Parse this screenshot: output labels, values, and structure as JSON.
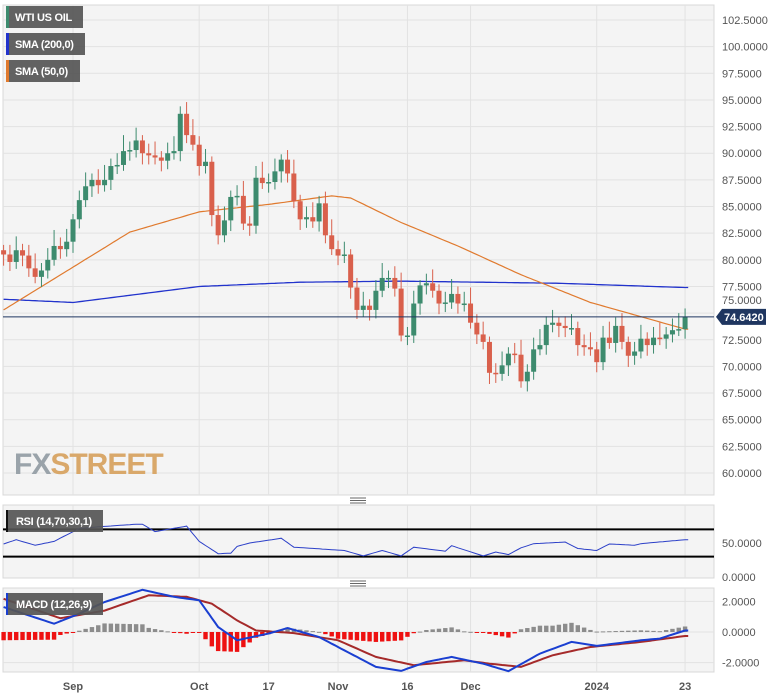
{
  "chart_data": {
    "type": "candlestick",
    "title": "WTI US OIL",
    "legend": [
      {
        "label": "WTI US OIL",
        "color": "#3d8b6e"
      },
      {
        "label": "SMA (200,0)",
        "color": "#2233cc"
      },
      {
        "label": "SMA (50,0)",
        "color": "#e07a2e"
      }
    ],
    "legend_placement": "top-left",
    "watermark": "FXSTREET",
    "ylim": [
      57.5,
      104
    ],
    "y_ticks": [
      "60.0000",
      "62.5000",
      "65.0000",
      "67.5000",
      "70.0000",
      "72.5000",
      "75.0000",
      "77.5000",
      "80.0000",
      "82.5000",
      "85.0000",
      "87.5000",
      "90.0000",
      "92.5000",
      "95.0000",
      "97.5000",
      "100.0000",
      "102.5000"
    ],
    "x_ticks": [
      {
        "label": "Sep",
        "index": 11
      },
      {
        "label": "Oct",
        "index": 31
      },
      {
        "label": "17",
        "index": 42
      },
      {
        "label": "Nov",
        "index": 53
      },
      {
        "label": "16",
        "index": 64
      },
      {
        "label": "Dec",
        "index": 74
      },
      {
        "label": "2024",
        "index": 94
      },
      {
        "label": "23",
        "index": 108
      }
    ],
    "current_price": {
      "value": 74.642,
      "label": "74.6420"
    },
    "closes": [
      80.5,
      79.8,
      80.9,
      80.4,
      79.2,
      78.4,
      79.0,
      80.0,
      81.3,
      81.0,
      81.7,
      83.8,
      85.6,
      86.9,
      87.5,
      87.0,
      87.5,
      88.8,
      88.9,
      90.2,
      90.3,
      91.2,
      90.0,
      89.8,
      89.6,
      89.3,
      90.0,
      90.2,
      93.7,
      91.7,
      90.8,
      88.8,
      89.2,
      84.2,
      82.3,
      83.7,
      85.9,
      86.0,
      83.4,
      83.2,
      87.7,
      87.2,
      87.3,
      88.3,
      89.4,
      88.1,
      85.5,
      83.8,
      84.0,
      83.6,
      85.3,
      82.3,
      81.0,
      80.4,
      80.5,
      77.4,
      75.3,
      75.7,
      75.3,
      77.1,
      78.3,
      78.3,
      77.3,
      72.9,
      72.9,
      75.9,
      77.6,
      77.8,
      77.1,
      75.9,
      76.0,
      76.8,
      75.9,
      75.9,
      74.1,
      73.0,
      72.3,
      69.4,
      69.3,
      70.1,
      71.2,
      71.1,
      68.6,
      69.5,
      71.6,
      72.0,
      73.9,
      74.1,
      73.8,
      73.6,
      73.6,
      72.0,
      71.8,
      71.6,
      70.4,
      72.7,
      72.2,
      73.8,
      72.3,
      71.0,
      71.4,
      72.6,
      72.0,
      72.7,
      72.6,
      73.0,
      73.4,
      73.5,
      74.64
    ],
    "sma50": [
      [
        0,
        75.3
      ],
      [
        20,
        82.6
      ],
      [
        31,
        84.5
      ],
      [
        42,
        85.2
      ],
      [
        52,
        86.0
      ],
      [
        55,
        85.8
      ],
      [
        63,
        83.5
      ],
      [
        72,
        81.3
      ],
      [
        82,
        78.6
      ],
      [
        93,
        76.0
      ],
      [
        108,
        73.5
      ]
    ],
    "sma200": [
      [
        0,
        76.3
      ],
      [
        11,
        76.0
      ],
      [
        31,
        77.5
      ],
      [
        47,
        77.9
      ],
      [
        63,
        78.0
      ],
      [
        88,
        77.8
      ],
      [
        108,
        77.4
      ]
    ],
    "rsi": {
      "label": "RSI (14,70,30,1)",
      "levels": [
        70,
        30
      ],
      "y_ticks": [
        "50.0000",
        "0.0000"
      ],
      "points": [
        [
          0,
          48.6
        ],
        [
          2,
          54.8
        ],
        [
          5,
          46.7
        ],
        [
          8,
          52.4
        ],
        [
          12,
          71.4
        ],
        [
          15,
          73.8
        ],
        [
          21,
          77.6
        ],
        [
          22,
          77.6
        ],
        [
          24,
          66.7
        ],
        [
          29,
          74.8
        ],
        [
          31,
          52.4
        ],
        [
          34,
          34.3
        ],
        [
          36,
          35
        ],
        [
          37,
          45
        ],
        [
          39,
          50
        ],
        [
          44,
          57
        ],
        [
          46,
          43.8
        ],
        [
          54,
          39
        ],
        [
          57,
          31
        ],
        [
          60,
          39
        ],
        [
          63,
          31
        ],
        [
          65,
          43.8
        ],
        [
          70,
          38
        ],
        [
          71,
          46
        ],
        [
          76,
          31
        ],
        [
          78,
          36.7
        ],
        [
          80,
          33
        ],
        [
          82,
          42.9
        ],
        [
          84,
          49
        ],
        [
          89,
          51.4
        ],
        [
          91,
          41.9
        ],
        [
          94,
          39
        ],
        [
          96,
          48.6
        ],
        [
          100,
          46.7
        ],
        [
          101,
          49
        ],
        [
          105,
          52.4
        ],
        [
          108,
          54.8
        ]
      ]
    },
    "macd": {
      "label": "MACD (12,26,9)",
      "y_ticks": [
        "2.0000",
        "0.0000",
        "-2.0000"
      ],
      "macd": [
        [
          0,
          1.63
        ],
        [
          8,
          0.54
        ],
        [
          12,
          1.2
        ],
        [
          16,
          1.96
        ],
        [
          22,
          2.76
        ],
        [
          27,
          2.3
        ],
        [
          31,
          2.07
        ],
        [
          34,
          0.33
        ],
        [
          37,
          -0.54
        ],
        [
          42,
          -0.1
        ],
        [
          45,
          0.26
        ],
        [
          50,
          -0.33
        ],
        [
          53,
          -0.98
        ],
        [
          56,
          -1.63
        ],
        [
          59,
          -2.28
        ],
        [
          63,
          -2.54
        ],
        [
          67,
          -1.96
        ],
        [
          71,
          -1.63
        ],
        [
          76,
          -2.07
        ],
        [
          80,
          -2.56
        ],
        [
          85,
          -1.41
        ],
        [
          90,
          -0.65
        ],
        [
          94,
          -0.91
        ],
        [
          101,
          -0.54
        ],
        [
          104,
          -0.43
        ],
        [
          108,
          0.1
        ]
      ],
      "signal": [
        [
          0,
          2.17
        ],
        [
          9,
          0.9
        ],
        [
          16,
          1.4
        ],
        [
          23,
          2.4
        ],
        [
          29,
          2.3
        ],
        [
          33,
          1.85
        ],
        [
          37,
          0.76
        ],
        [
          40,
          0.1
        ],
        [
          46,
          -0.07
        ],
        [
          53,
          -0.54
        ],
        [
          59,
          -1.63
        ],
        [
          65,
          -2.17
        ],
        [
          73,
          -1.85
        ],
        [
          77,
          -2.07
        ],
        [
          82,
          -2.28
        ],
        [
          87,
          -1.52
        ],
        [
          93,
          -0.98
        ],
        [
          101,
          -0.65
        ],
        [
          108,
          -0.26
        ]
      ]
    },
    "colors": {
      "up": "#3d8b6e",
      "down": "#d9604c",
      "sma200": "#2233cc",
      "sma50": "#e07a2e",
      "macd": "#1a3fd1",
      "signal": "#a52a2a",
      "hist_pos": "#8c8c8c",
      "hist_neg": "#ee1111",
      "price_line": "#1f3660"
    }
  }
}
